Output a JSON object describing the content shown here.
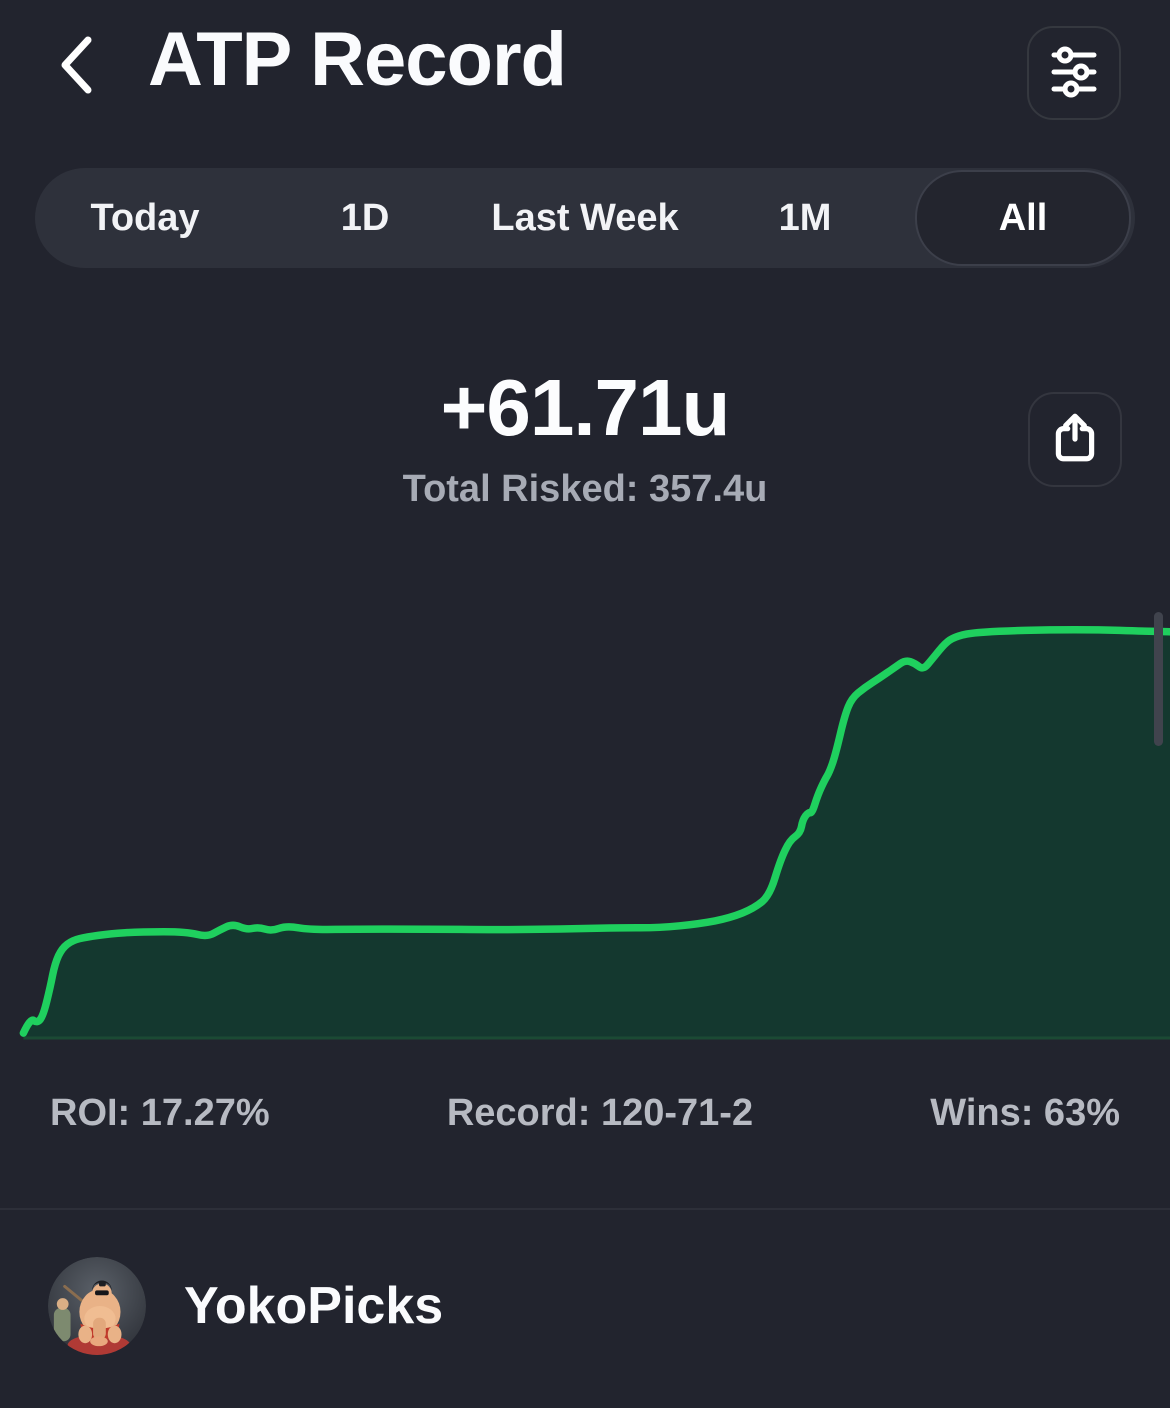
{
  "header": {
    "title": "ATP Record",
    "back_icon": "chevron-left",
    "filters_icon": "sliders"
  },
  "tabs": {
    "items": [
      {
        "label": "Today",
        "selected": false
      },
      {
        "label": "1D",
        "selected": false
      },
      {
        "label": "Last Week",
        "selected": false
      },
      {
        "label": "1M",
        "selected": false
      },
      {
        "label": "All",
        "selected": true
      }
    ]
  },
  "summary": {
    "net_units": "+61.71u",
    "total_risked": "Total Risked: 357.4u",
    "share_icon": "share-up-arrow"
  },
  "stats": {
    "roi": {
      "label": "ROI",
      "value": "17.27%",
      "display": "ROI: 17.27%"
    },
    "record": {
      "label": "Record",
      "value": "120-71-2",
      "display": "Record: 120-71-2"
    },
    "wins": {
      "label": "Wins",
      "value": "63%",
      "display": "Wins: 63%"
    }
  },
  "profile": {
    "name": "YokoPicks",
    "avatar_icon": "sumo-cartoon-avatar"
  },
  "colors": {
    "background": "#22242e",
    "tab_container": "#2e313b",
    "selected_pill": "#23252e",
    "line_green": "#1fd05e",
    "fill_green": "#14382f",
    "baseline_green": "#1b4a34",
    "text_primary": "#fafbfd",
    "text_secondary": "#a7abb5",
    "stats_text": "#b7bac2"
  },
  "chart_data": {
    "type": "area",
    "title": "Cumulative profit in units, all-time record",
    "xlabel": "",
    "ylabel": "units",
    "x_unit": "percent_of_timeline",
    "y_range_units": [
      0,
      63
    ],
    "final_value_units": 61.71,
    "grid": false,
    "legend": false,
    "axes_hidden": true,
    "line_color": "#1fd05e",
    "fill_color": "#14382f",
    "baseline_color": "#1b4a34",
    "points_pct_units": [
      [
        2.0,
        0.6
      ],
      [
        2.6,
        2.9
      ],
      [
        3.2,
        2.1
      ],
      [
        3.7,
        3.3
      ],
      [
        4.3,
        7.6
      ],
      [
        4.7,
        11.2
      ],
      [
        5.3,
        13.5
      ],
      [
        6.2,
        14.7
      ],
      [
        7.4,
        15.2
      ],
      [
        9.4,
        15.7
      ],
      [
        12,
        16.0
      ],
      [
        16,
        16.0
      ],
      [
        17.7,
        15.2
      ],
      [
        18.8,
        16.3
      ],
      [
        19.9,
        17.2
      ],
      [
        21.1,
        16.3
      ],
      [
        22.1,
        16.7
      ],
      [
        23.2,
        16.1
      ],
      [
        24.5,
        16.9
      ],
      [
        26.5,
        16.3
      ],
      [
        30.8,
        16.4
      ],
      [
        35.9,
        16.4
      ],
      [
        42.7,
        16.3
      ],
      [
        47.9,
        16.4
      ],
      [
        53.0,
        16.6
      ],
      [
        56.4,
        16.6
      ],
      [
        59.8,
        17.2
      ],
      [
        62.4,
        18.1
      ],
      [
        64.5,
        19.6
      ],
      [
        65.8,
        21.6
      ],
      [
        66.7,
        26.9
      ],
      [
        67.5,
        29.9
      ],
      [
        68.4,
        31.0
      ],
      [
        68.6,
        33.0
      ],
      [
        69.1,
        34.2
      ],
      [
        69.4,
        34.0
      ],
      [
        69.9,
        36.8
      ],
      [
        70.5,
        39.1
      ],
      [
        70.9,
        40.3
      ],
      [
        71.4,
        42.9
      ],
      [
        72.2,
        48.9
      ],
      [
        72.8,
        51.5
      ],
      [
        73.9,
        53.1
      ],
      [
        75.2,
        54.6
      ],
      [
        76.5,
        56.2
      ],
      [
        77.4,
        57.3
      ],
      [
        78.2,
        56.8
      ],
      [
        78.9,
        55.8
      ],
      [
        79.7,
        57.5
      ],
      [
        80.8,
        59.9
      ],
      [
        81.6,
        60.8
      ],
      [
        82.9,
        61.4
      ],
      [
        85.5,
        61.7
      ],
      [
        89.7,
        61.9
      ],
      [
        94.0,
        61.9
      ],
      [
        97.4,
        61.7
      ],
      [
        100,
        61.6
      ]
    ]
  }
}
